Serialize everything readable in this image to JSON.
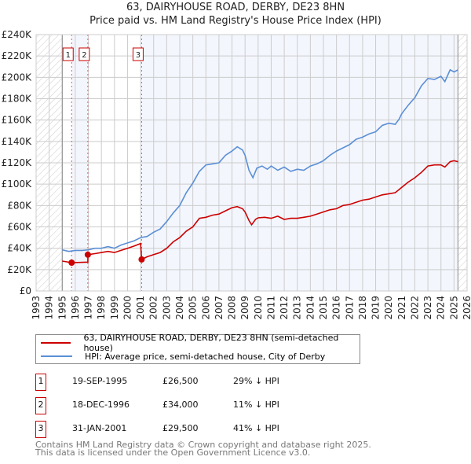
{
  "title": "63, DAIRYHOUSE ROAD, DERBY, DE23 8HN",
  "subtitle": "Price paid vs. HM Land Registry's House Price Index (HPI)",
  "colors": {
    "price": "#cc0000",
    "hpi": "#5b8fd4",
    "shade": "#f3f6fd",
    "grid": "#cccccc"
  },
  "chart_data": {
    "type": "line",
    "title": "63, DAIRYHOUSE ROAD, DERBY, DE23 8HN",
    "xlim": [
      1993,
      2026
    ],
    "ylim": [
      0,
      240000
    ],
    "x_ticks": [
      "1993",
      "1994",
      "1995",
      "1996",
      "1997",
      "1998",
      "1999",
      "2000",
      "2001",
      "2002",
      "2003",
      "2004",
      "2005",
      "2006",
      "2007",
      "2008",
      "2009",
      "2010",
      "2011",
      "2012",
      "2013",
      "2014",
      "2015",
      "2016",
      "2017",
      "2018",
      "2019",
      "2020",
      "2021",
      "2022",
      "2023",
      "2024",
      "2025",
      "2026"
    ],
    "y_ticks": [
      {
        "v": 0,
        "label": "£0"
      },
      {
        "v": 20000,
        "label": "£20K"
      },
      {
        "v": 40000,
        "label": "£40K"
      },
      {
        "v": 60000,
        "label": "£60K"
      },
      {
        "v": 80000,
        "label": "£80K"
      },
      {
        "v": 100000,
        "label": "£100K"
      },
      {
        "v": 120000,
        "label": "£120K"
      },
      {
        "v": 140000,
        "label": "£140K"
      },
      {
        "v": 160000,
        "label": "£160K"
      },
      {
        "v": 180000,
        "label": "£180K"
      },
      {
        "v": 200000,
        "label": "£200K"
      },
      {
        "v": 220000,
        "label": "£220K"
      },
      {
        "v": 240000,
        "label": "£240K"
      }
    ],
    "grid": true,
    "data_range": [
      1995,
      2025.3
    ],
    "series": [
      {
        "name": "63, DAIRYHOUSE ROAD, DERBY, DE23 8HN (semi-detached house)",
        "key": "price",
        "points": [
          [
            1995,
            28000
          ],
          [
            1995.72,
            26500
          ],
          [
            1996.96,
            27000
          ],
          [
            1996.97,
            34000
          ],
          [
            1997.5,
            35000
          ],
          [
            1998,
            36000
          ],
          [
            1998.5,
            37000
          ],
          [
            1999,
            36000
          ],
          [
            1999.5,
            38000
          ],
          [
            2000,
            40000
          ],
          [
            2000.5,
            42000
          ],
          [
            2001,
            44500
          ],
          [
            2001.08,
            29500
          ],
          [
            2001.5,
            32000
          ],
          [
            2002,
            34000
          ],
          [
            2002.5,
            36000
          ],
          [
            2003,
            40000
          ],
          [
            2003.5,
            46000
          ],
          [
            2004,
            50000
          ],
          [
            2004.5,
            56000
          ],
          [
            2005,
            60000
          ],
          [
            2005.5,
            68000
          ],
          [
            2006,
            69000
          ],
          [
            2006.5,
            71000
          ],
          [
            2007,
            72000
          ],
          [
            2007.5,
            75000
          ],
          [
            2008,
            78000
          ],
          [
            2008.4,
            79000
          ],
          [
            2008.8,
            77000
          ],
          [
            2009,
            74000
          ],
          [
            2009.3,
            66000
          ],
          [
            2009.5,
            62000
          ],
          [
            2009.8,
            67000
          ],
          [
            2010,
            68500
          ],
          [
            2010.5,
            69000
          ],
          [
            2011,
            68000
          ],
          [
            2011.5,
            70000
          ],
          [
            2012,
            67000
          ],
          [
            2012.5,
            68000
          ],
          [
            2013,
            68000
          ],
          [
            2013.5,
            69000
          ],
          [
            2014,
            70000
          ],
          [
            2014.5,
            72000
          ],
          [
            2015,
            74000
          ],
          [
            2015.5,
            76000
          ],
          [
            2016,
            77000
          ],
          [
            2016.5,
            80000
          ],
          [
            2017,
            81000
          ],
          [
            2017.5,
            83000
          ],
          [
            2018,
            85000
          ],
          [
            2018.5,
            86000
          ],
          [
            2019,
            88000
          ],
          [
            2019.5,
            90000
          ],
          [
            2020,
            91000
          ],
          [
            2020.5,
            92000
          ],
          [
            2021,
            97000
          ],
          [
            2021.5,
            102000
          ],
          [
            2022,
            106000
          ],
          [
            2022.5,
            111000
          ],
          [
            2023,
            117000
          ],
          [
            2023.5,
            118000
          ],
          [
            2024,
            118000
          ],
          [
            2024.3,
            116000
          ],
          [
            2024.7,
            121000
          ],
          [
            2025,
            122000
          ],
          [
            2025.3,
            121000
          ]
        ]
      },
      {
        "name": "HPI: Average price, semi-detached house, City of Derby",
        "key": "hpi",
        "points": [
          [
            1995,
            38500
          ],
          [
            1995.5,
            37000
          ],
          [
            1996,
            38000
          ],
          [
            1996.5,
            38000
          ],
          [
            1997,
            38500
          ],
          [
            1997.5,
            40000
          ],
          [
            1998,
            40000
          ],
          [
            1998.5,
            41500
          ],
          [
            1999,
            40000
          ],
          [
            1999.5,
            43000
          ],
          [
            2000,
            45000
          ],
          [
            2000.5,
            47000
          ],
          [
            2001,
            50000
          ],
          [
            2001.5,
            51000
          ],
          [
            2002,
            55000
          ],
          [
            2002.5,
            58000
          ],
          [
            2003,
            65000
          ],
          [
            2003.5,
            73000
          ],
          [
            2004,
            80000
          ],
          [
            2004.5,
            92000
          ],
          [
            2005,
            101000
          ],
          [
            2005.5,
            112000
          ],
          [
            2006,
            118000
          ],
          [
            2006.5,
            119000
          ],
          [
            2007,
            120000
          ],
          [
            2007.5,
            127000
          ],
          [
            2008,
            131000
          ],
          [
            2008.4,
            135000
          ],
          [
            2008.8,
            132000
          ],
          [
            2009,
            127000
          ],
          [
            2009.3,
            113000
          ],
          [
            2009.6,
            106000
          ],
          [
            2009.9,
            115000
          ],
          [
            2010.3,
            117000
          ],
          [
            2010.7,
            114000
          ],
          [
            2011,
            117000
          ],
          [
            2011.5,
            113000
          ],
          [
            2012,
            116000
          ],
          [
            2012.5,
            112000
          ],
          [
            2013,
            114000
          ],
          [
            2013.5,
            113000
          ],
          [
            2014,
            117000
          ],
          [
            2014.5,
            119000
          ],
          [
            2015,
            122000
          ],
          [
            2015.5,
            127000
          ],
          [
            2016,
            131000
          ],
          [
            2016.5,
            134000
          ],
          [
            2017,
            137000
          ],
          [
            2017.5,
            142000
          ],
          [
            2018,
            144000
          ],
          [
            2018.5,
            147000
          ],
          [
            2019,
            149000
          ],
          [
            2019.5,
            155000
          ],
          [
            2020,
            157000
          ],
          [
            2020.5,
            156000
          ],
          [
            2020.8,
            161000
          ],
          [
            2021,
            166000
          ],
          [
            2021.5,
            174000
          ],
          [
            2022,
            181000
          ],
          [
            2022.5,
            192000
          ],
          [
            2023,
            199000
          ],
          [
            2023.5,
            198000
          ],
          [
            2024,
            201000
          ],
          [
            2024.3,
            196000
          ],
          [
            2024.7,
            207000
          ],
          [
            2025,
            205000
          ],
          [
            2025.3,
            207000
          ]
        ]
      }
    ],
    "sales": [
      {
        "num": "1",
        "x": 1995.72,
        "price": 26500
      },
      {
        "num": "2",
        "x": 1996.96,
        "price": 34000
      },
      {
        "num": "3",
        "x": 2001.08,
        "price": 29500
      }
    ]
  },
  "legend": {
    "price_label": "63, DAIRYHOUSE ROAD, DERBY, DE23 8HN (semi-detached house)",
    "hpi_label": "HPI: Average price, semi-detached house, City of Derby"
  },
  "transactions": [
    {
      "num": "1",
      "date": "19-SEP-1995",
      "price": "£26,500",
      "delta": "29% ↓ HPI"
    },
    {
      "num": "2",
      "date": "18-DEC-1996",
      "price": "£34,000",
      "delta": "11% ↓ HPI"
    },
    {
      "num": "3",
      "date": "31-JAN-2001",
      "price": "£29,500",
      "delta": "41% ↓ HPI"
    }
  ],
  "footer": {
    "line1": "Contains HM Land Registry data © Crown copyright and database right 2025.",
    "line2": "This data is licensed under the Open Government Licence v3.0."
  }
}
